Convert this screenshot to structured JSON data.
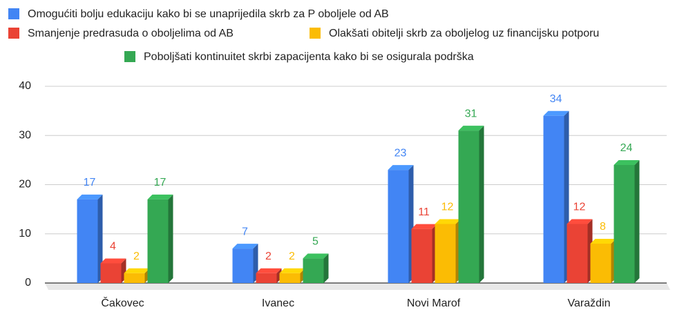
{
  "chart_data": {
    "type": "bar3d",
    "categories": [
      "Čakovec",
      "Ivanec",
      "Novi Marof",
      "Varaždin"
    ],
    "series": [
      {
        "name": "Omogućiti bolju edukaciju kako bi se unaprijedila skrb za P oboljele od AB",
        "color": "#4285f4",
        "values": [
          17,
          7,
          23,
          34
        ]
      },
      {
        "name": "Smanjenje predrasuda o oboljelima od AB",
        "color": "#ea4335",
        "values": [
          4,
          2,
          11,
          12
        ]
      },
      {
        "name": "Olakšati obitelji skrb za oboljelog uz financijsku potporu",
        "color": "#fbbc04",
        "values": [
          2,
          2,
          12,
          8
        ]
      },
      {
        "name": "Poboljšati kontinuitet skrbi zapacijenta kako bi se osigurala podrška",
        "color": "#34a853",
        "values": [
          17,
          5,
          31,
          24
        ]
      }
    ],
    "ylim": [
      0,
      40
    ],
    "yticks": [
      0,
      10,
      20,
      30,
      40
    ],
    "grid": true
  }
}
